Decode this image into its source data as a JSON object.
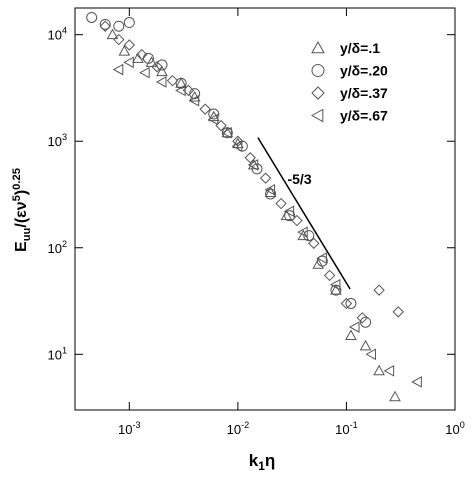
{
  "chart_data": {
    "type": "scatter",
    "xlabel": "k_{1}η",
    "ylabel": "E_{uu}/(εν^{5})^{0.25}",
    "xscale": "log",
    "yscale": "log",
    "xlim": [
      0.000316,
      1
    ],
    "ylim": [
      3,
      17800
    ],
    "xticks": [
      {
        "value": 0.001,
        "label": "10^-3"
      },
      {
        "value": 0.01,
        "label": "10^-2"
      },
      {
        "value": 0.1,
        "label": "10^-1"
      },
      {
        "value": 1,
        "label": "10^0"
      }
    ],
    "yticks": [
      {
        "value": 10,
        "label": "10^1"
      },
      {
        "value": 100,
        "label": "10^2"
      },
      {
        "value": 1000,
        "label": "10^3"
      },
      {
        "value": 10000,
        "label": "10^4"
      }
    ],
    "legend": "upper right",
    "series": [
      {
        "name": "y/δ=.1",
        "marker": "triangle-up",
        "color": "#555555",
        "x": [
          0.0007,
          0.0009,
          0.0012,
          0.0016,
          0.002,
          0.003,
          0.004,
          0.006,
          0.008,
          0.01,
          0.014,
          0.02,
          0.028,
          0.04,
          0.055,
          0.08,
          0.11,
          0.15,
          0.2,
          0.28
        ],
        "values": [
          10000,
          7000,
          6000,
          5500,
          4500,
          3500,
          2600,
          1700,
          1200,
          950,
          600,
          330,
          200,
          130,
          70,
          40,
          15,
          12,
          7,
          4
        ]
      },
      {
        "name": "y/δ=.20",
        "marker": "circle",
        "color": "#555555",
        "x": [
          0.00045,
          0.0006,
          0.0008,
          0.001,
          0.0015,
          0.002,
          0.003,
          0.004,
          0.006,
          0.008,
          0.011,
          0.015,
          0.02,
          0.03,
          0.045,
          0.06,
          0.08,
          0.11,
          0.15
        ],
        "values": [
          14500,
          12500,
          12000,
          13000,
          6000,
          5200,
          3500,
          2800,
          1800,
          1200,
          900,
          550,
          320,
          200,
          130,
          75,
          40,
          30,
          20
        ]
      },
      {
        "name": "y/δ=.37",
        "marker": "diamond",
        "color": "#555555",
        "x": [
          0.0006,
          0.0008,
          0.001,
          0.0013,
          0.0018,
          0.0025,
          0.0035,
          0.005,
          0.007,
          0.01,
          0.013,
          0.018,
          0.025,
          0.035,
          0.05,
          0.07,
          0.1,
          0.14,
          0.2,
          0.3
        ],
        "values": [
          12000,
          9000,
          8000,
          6500,
          5000,
          3700,
          3000,
          2000,
          1400,
          1000,
          700,
          450,
          260,
          180,
          110,
          55,
          30,
          22,
          40,
          25
        ]
      },
      {
        "name": "y/δ=.67",
        "marker": "triangle-left",
        "color": "#555555",
        "x": [
          0.0008,
          0.001,
          0.0014,
          0.002,
          0.003,
          0.004,
          0.006,
          0.008,
          0.01,
          0.014,
          0.02,
          0.03,
          0.04,
          0.06,
          0.08,
          0.12,
          0.17,
          0.25,
          0.45
        ],
        "values": [
          4700,
          5500,
          4400,
          3600,
          3000,
          2400,
          1600,
          1200,
          900,
          600,
          350,
          220,
          140,
          80,
          45,
          18,
          10,
          7,
          5.5
        ]
      }
    ],
    "reference_line": {
      "x": [
        0.0153,
        0.108
      ],
      "values": [
        1080,
        41
      ],
      "color": "#000000"
    },
    "annotation": {
      "text": "-5/3",
      "x": 0.037,
      "y": 395
    }
  }
}
